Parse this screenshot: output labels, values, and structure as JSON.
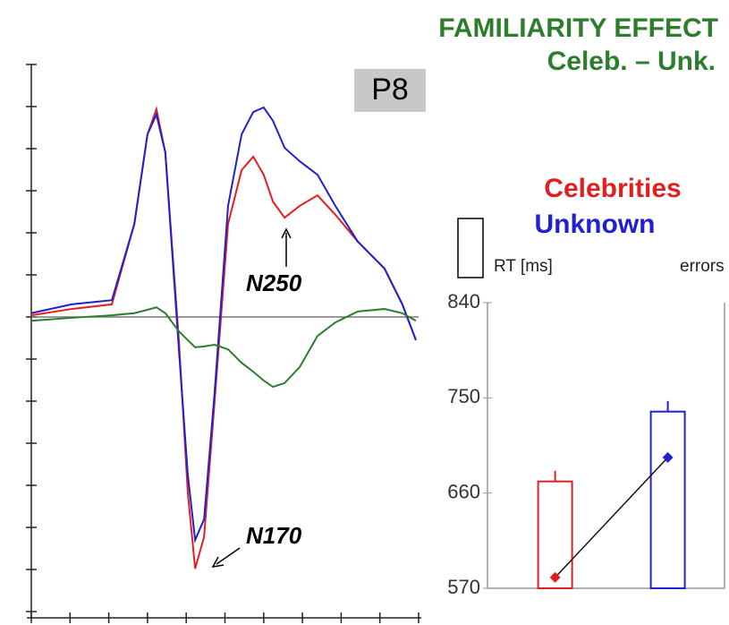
{
  "chart_data": [
    {
      "type": "line",
      "title": "FAMILIARITY EFFECT",
      "subtitle": "Celeb. – Unk.",
      "label": "P8",
      "annotations": [
        "N250",
        "N170"
      ],
      "x": [
        0,
        1.04,
        2.08,
        2.66,
        3.0,
        3.23,
        3.46,
        3.81,
        4.04,
        4.23,
        4.46,
        4.73,
        5.08,
        5.43,
        5.73,
        6.0,
        6.24,
        6.54,
        6.93,
        7.39,
        7.85,
        8.43,
        9.12,
        9.58,
        9.93
      ],
      "series": [
        {
          "color": "#e02020",
          "values": [
            0.04,
            0.19,
            0.3,
            2.21,
            4.34,
            4.94,
            3.91,
            -0.55,
            -4.17,
            -5.98,
            -5.23,
            -2.04,
            2.21,
            3.49,
            3.81,
            3.38,
            2.74,
            2.36,
            2.64,
            2.89,
            2.43,
            1.79,
            1.15,
            0.3,
            -0.55
          ]
        },
        {
          "color": "#2020d0",
          "values": [
            0.09,
            0.3,
            0.4,
            2.21,
            4.34,
            4.81,
            3.91,
            -0.77,
            -3.74,
            -5.3,
            -4.81,
            -1.83,
            2.64,
            4.34,
            4.87,
            4.98,
            4.66,
            4.02,
            3.7,
            3.38,
            2.64,
            1.79,
            1.15,
            0.3,
            -0.55
          ]
        },
        {
          "color": "#2e7d2e",
          "values": [
            -0.09,
            -0.02,
            0.04,
            0.09,
            0.17,
            0.23,
            0.09,
            -0.34,
            -0.55,
            -0.72,
            -0.7,
            -0.66,
            -0.77,
            -1.09,
            -1.3,
            -1.51,
            -1.66,
            -1.57,
            -1.19,
            -0.45,
            -0.13,
            0.13,
            0.19,
            0.09,
            -0.09
          ]
        }
      ],
      "xlim": [
        0,
        10
      ],
      "xticks": [
        0,
        1,
        2,
        3,
        4,
        5,
        6,
        7,
        8,
        9,
        10
      ],
      "ylim": [
        -7,
        6
      ],
      "yticks": [
        -7,
        -6,
        -5,
        -4,
        -3,
        -2,
        -1,
        0,
        1,
        2,
        3,
        4,
        5,
        6
      ]
    },
    {
      "type": "bar",
      "categories": [
        "Celebrities",
        "Unknown"
      ],
      "colors": [
        "#e02020",
        "#2020d0"
      ],
      "series": [
        {
          "name": "RT [ms]",
          "values": [
            671,
            737
          ],
          "errors": [
            10,
            10
          ]
        },
        {
          "name": "errors",
          "axis": "y2",
          "values": [
            0.38,
            4.58
          ]
        }
      ],
      "ylim": [
        570,
        840
      ],
      "yticks": [
        570,
        660,
        750,
        840
      ],
      "y2lim": [
        0,
        10
      ]
    }
  ]
}
